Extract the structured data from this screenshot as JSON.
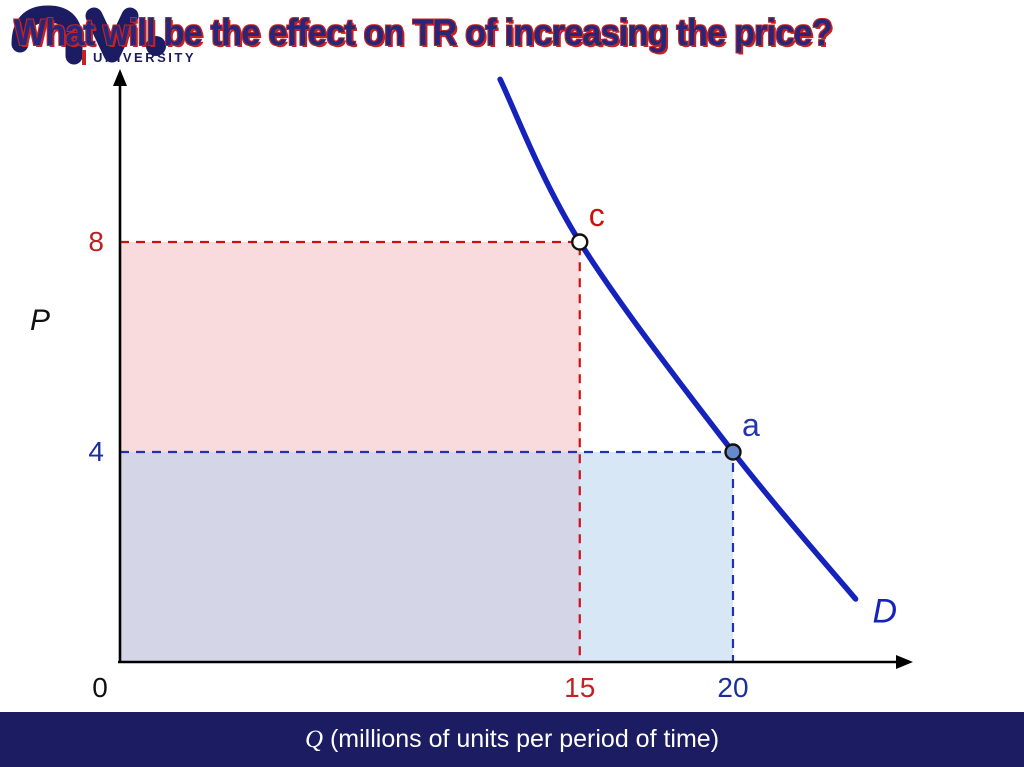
{
  "theme": {
    "navy": "#1c1c63",
    "title_navy": "#26267a",
    "title_red": "#c42222",
    "curve_blue": "#1522bb"
  },
  "header": {
    "title": "What will be the effect on TR of increasing the price?",
    "logo_text": "UNIVERSITY"
  },
  "footer": {
    "q_label": "Q",
    "rest_label": " (millions of units per period of time)"
  },
  "chart_data": {
    "type": "line",
    "title": "What will be the effect on TR of increasing the price?",
    "xlabel": "Q (millions of units per period of time)",
    "ylabel": "P",
    "xlim": [
      0,
      25.5
    ],
    "ylim": [
      0,
      11.3
    ],
    "grid": false,
    "curve": {
      "name": "D",
      "color": "#1522bb",
      "points": [
        [
          12.4,
          11.1
        ],
        [
          15,
          8
        ],
        [
          20,
          4
        ],
        [
          24,
          1.2
        ]
      ],
      "label_at": [
        24.55,
        0.75
      ]
    },
    "markers": [
      {
        "label": "c",
        "x": 15,
        "y": 8,
        "style": "open",
        "fill": "#ffffff",
        "guide_color": "#cc1111",
        "label_color": "#cc1111"
      },
      {
        "label": "a",
        "x": 20,
        "y": 4,
        "style": "filled",
        "fill": "#6688cc",
        "guide_color": "#2233aa",
        "label_color": "#2236b0"
      }
    ],
    "shaded_regions": [
      {
        "name": "tr-at-price-8",
        "x0": 0,
        "y0": 0,
        "x1": 15,
        "y1": 8,
        "color": "#f9dadd",
        "opacity": 1
      },
      {
        "name": "tr-at-price-4",
        "x0": 0,
        "y0": 0,
        "x1": 20,
        "y1": 4,
        "color": "#b7d4ee",
        "opacity": 0.55
      }
    ],
    "x_ticks": [
      {
        "value": "0",
        "x": 0,
        "dx": -20,
        "color": "#111111"
      },
      {
        "value": "15",
        "x": 15,
        "dx": 0,
        "color": "#c42222"
      },
      {
        "value": "20",
        "x": 20,
        "dx": 0,
        "color": "#1a2e9e"
      }
    ],
    "y_ticks": [
      {
        "value": "8",
        "y": 8,
        "color": "#b92222"
      },
      {
        "value": "4",
        "y": 4,
        "color": "#1a2e9e"
      }
    ]
  }
}
